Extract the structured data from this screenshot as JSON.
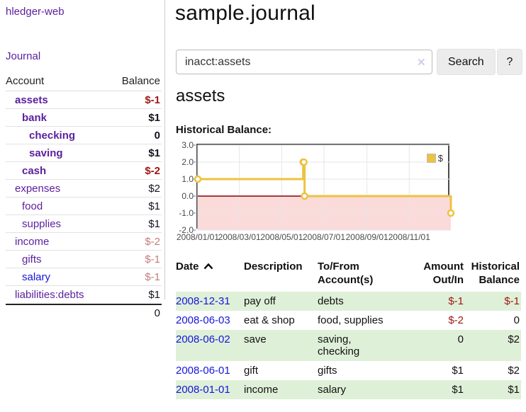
{
  "app": {
    "brand": "hledger-web",
    "nav": {
      "journal": "Journal"
    }
  },
  "sidebar": {
    "header": {
      "account": "Account",
      "balance": "Balance"
    },
    "accounts": [
      {
        "name": "assets",
        "balance": "$-1"
      },
      {
        "name": "bank",
        "balance": "$1"
      },
      {
        "name": "checking",
        "balance": "0"
      },
      {
        "name": "saving",
        "balance": "$1"
      },
      {
        "name": "cash",
        "balance": "$-2"
      },
      {
        "name": "expenses",
        "balance": "$2"
      },
      {
        "name": "food",
        "balance": "$1"
      },
      {
        "name": "supplies",
        "balance": "$1"
      },
      {
        "name": "income",
        "balance": "$-2"
      },
      {
        "name": "gifts",
        "balance": "$-1"
      },
      {
        "name": "salary",
        "balance": "$-1"
      },
      {
        "name": "liabilities:debts",
        "balance": "$1"
      }
    ],
    "total": "0"
  },
  "header": {
    "title": "sample.journal"
  },
  "search": {
    "value": "inacct:assets",
    "clear_icon": "✕",
    "search_button": "Search",
    "help_button": "?"
  },
  "account_page": {
    "title": "assets"
  },
  "chart_data": {
    "type": "line",
    "step": true,
    "title": "Historical Balance:",
    "series": [
      {
        "name": "$",
        "color": "#edc240",
        "points": [
          [
            "2008-01-01",
            1
          ],
          [
            "2008-06-01",
            2
          ],
          [
            "2008-06-02",
            2
          ],
          [
            "2008-06-03",
            0
          ],
          [
            "2008-12-31",
            -1
          ]
        ]
      }
    ],
    "x_ticks": [
      "2008/01/01",
      "2008/03/01",
      "2008/05/01",
      "2008/07/01",
      "2008/09/01",
      "2008/11/01"
    ],
    "y_ticks": [
      "3.0",
      "2.0",
      "1.0",
      "0.0",
      "-1.0",
      "-2.0"
    ],
    "ylim": [
      -2,
      3
    ],
    "xlim": [
      "2008-01-01",
      "2008-12-31"
    ],
    "grid": true,
    "legend_position": "top-right",
    "zero_line_color": "#8b0000",
    "negative_region_color": "#fbdada",
    "gridline_color": "#e6e6e6"
  },
  "register": {
    "columns": [
      {
        "label": "Date"
      },
      {
        "label": "Description"
      },
      {
        "label": "To/From Account(s)"
      },
      {
        "label": "Amount Out/In"
      },
      {
        "label": "Historical Balance"
      }
    ],
    "rows": [
      {
        "date": "2008-12-31",
        "description": "pay off",
        "accounts": "debts",
        "amount": "$-1",
        "balance": "$-1"
      },
      {
        "date": "2008-06-03",
        "description": "eat & shop",
        "accounts": "food, supplies",
        "amount": "$-2",
        "balance": "0"
      },
      {
        "date": "2008-06-02",
        "description": "save",
        "accounts": "saving, checking",
        "amount": "0",
        "balance": "$2"
      },
      {
        "date": "2008-06-01",
        "description": "gift",
        "accounts": "gifts",
        "amount": "$1",
        "balance": "$2"
      },
      {
        "date": "2008-01-01",
        "description": "income",
        "accounts": "salary",
        "amount": "$1",
        "balance": "$1"
      }
    ]
  }
}
